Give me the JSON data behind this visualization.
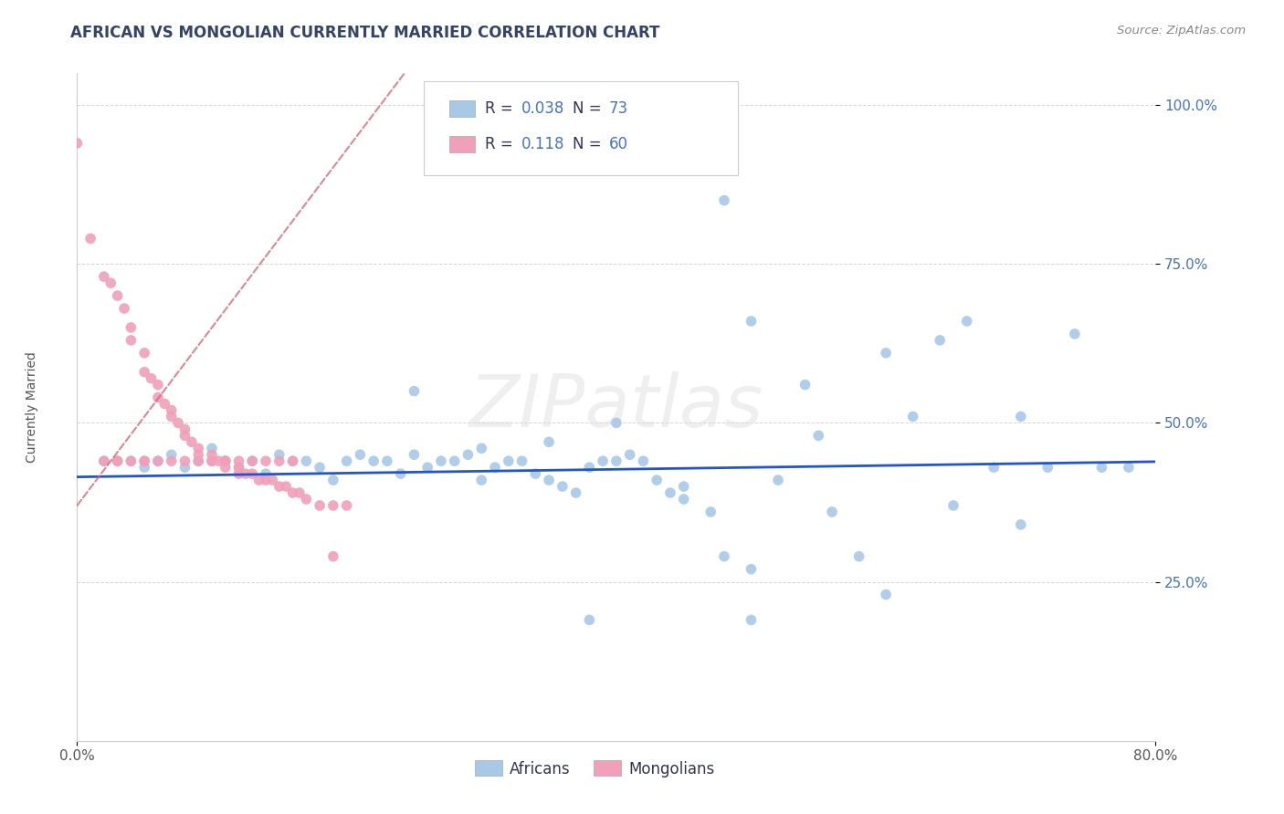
{
  "title": "AFRICAN VS MONGOLIAN CURRENTLY MARRIED CORRELATION CHART",
  "source": "Source: ZipAtlas.com",
  "ylabel": "Currently Married",
  "xlim": [
    0.0,
    0.8
  ],
  "ylim": [
    0.0,
    1.05
  ],
  "african_R": 0.038,
  "african_N": 73,
  "mongolian_R": 0.118,
  "mongolian_N": 60,
  "african_color": "#a8c8e8",
  "mongolian_color": "#f0a0b8",
  "african_line_color": "#2255cc",
  "mongolian_line_color": "#d06070",
  "mongolian_dash_color": "#e8a0b0",
  "background_color": "#ffffff",
  "african_x": [
    0.02,
    0.04,
    0.05,
    0.06,
    0.07,
    0.08,
    0.09,
    0.1,
    0.11,
    0.12,
    0.13,
    0.14,
    0.15,
    0.16,
    0.17,
    0.18,
    0.19,
    0.2,
    0.21,
    0.22,
    0.23,
    0.24,
    0.25,
    0.26,
    0.27,
    0.28,
    0.29,
    0.3,
    0.31,
    0.32,
    0.33,
    0.34,
    0.35,
    0.36,
    0.37,
    0.38,
    0.39,
    0.4,
    0.41,
    0.42,
    0.43,
    0.44,
    0.45,
    0.47,
    0.48,
    0.5,
    0.52,
    0.54,
    0.56,
    0.58,
    0.6,
    0.62,
    0.64,
    0.66,
    0.68,
    0.7,
    0.72,
    0.74,
    0.76,
    0.78,
    0.25,
    0.3,
    0.35,
    0.4,
    0.45,
    0.5,
    0.55,
    0.6,
    0.65,
    0.7,
    0.38,
    0.5,
    0.48
  ],
  "african_y": [
    0.44,
    0.44,
    0.43,
    0.44,
    0.45,
    0.43,
    0.44,
    0.46,
    0.44,
    0.43,
    0.44,
    0.42,
    0.45,
    0.44,
    0.44,
    0.43,
    0.41,
    0.44,
    0.45,
    0.44,
    0.44,
    0.42,
    0.45,
    0.43,
    0.44,
    0.44,
    0.45,
    0.41,
    0.43,
    0.44,
    0.44,
    0.42,
    0.41,
    0.4,
    0.39,
    0.43,
    0.44,
    0.44,
    0.45,
    0.44,
    0.41,
    0.39,
    0.38,
    0.36,
    0.29,
    0.27,
    0.41,
    0.56,
    0.36,
    0.29,
    0.23,
    0.51,
    0.63,
    0.66,
    0.43,
    0.51,
    0.43,
    0.64,
    0.43,
    0.43,
    0.55,
    0.46,
    0.47,
    0.5,
    0.4,
    0.66,
    0.48,
    0.61,
    0.37,
    0.34,
    0.19,
    0.19,
    0.85
  ],
  "mongolian_x": [
    0.0,
    0.01,
    0.02,
    0.025,
    0.03,
    0.035,
    0.04,
    0.04,
    0.05,
    0.05,
    0.055,
    0.06,
    0.06,
    0.065,
    0.07,
    0.07,
    0.075,
    0.08,
    0.08,
    0.085,
    0.09,
    0.09,
    0.1,
    0.1,
    0.105,
    0.11,
    0.11,
    0.12,
    0.12,
    0.125,
    0.13,
    0.135,
    0.14,
    0.145,
    0.15,
    0.155,
    0.16,
    0.165,
    0.17,
    0.18,
    0.19,
    0.2,
    0.03,
    0.05,
    0.07,
    0.09,
    0.11,
    0.13,
    0.15,
    0.02,
    0.04,
    0.06,
    0.08,
    0.1,
    0.12,
    0.14,
    0.16,
    0.03,
    0.05,
    0.19
  ],
  "mongolian_y": [
    0.94,
    0.79,
    0.73,
    0.72,
    0.7,
    0.68,
    0.65,
    0.63,
    0.61,
    0.58,
    0.57,
    0.56,
    0.54,
    0.53,
    0.52,
    0.51,
    0.5,
    0.49,
    0.48,
    0.47,
    0.46,
    0.45,
    0.45,
    0.44,
    0.44,
    0.44,
    0.43,
    0.43,
    0.42,
    0.42,
    0.42,
    0.41,
    0.41,
    0.41,
    0.4,
    0.4,
    0.39,
    0.39,
    0.38,
    0.37,
    0.37,
    0.37,
    0.44,
    0.44,
    0.44,
    0.44,
    0.44,
    0.44,
    0.44,
    0.44,
    0.44,
    0.44,
    0.44,
    0.44,
    0.44,
    0.44,
    0.44,
    0.44,
    0.44,
    0.29
  ]
}
